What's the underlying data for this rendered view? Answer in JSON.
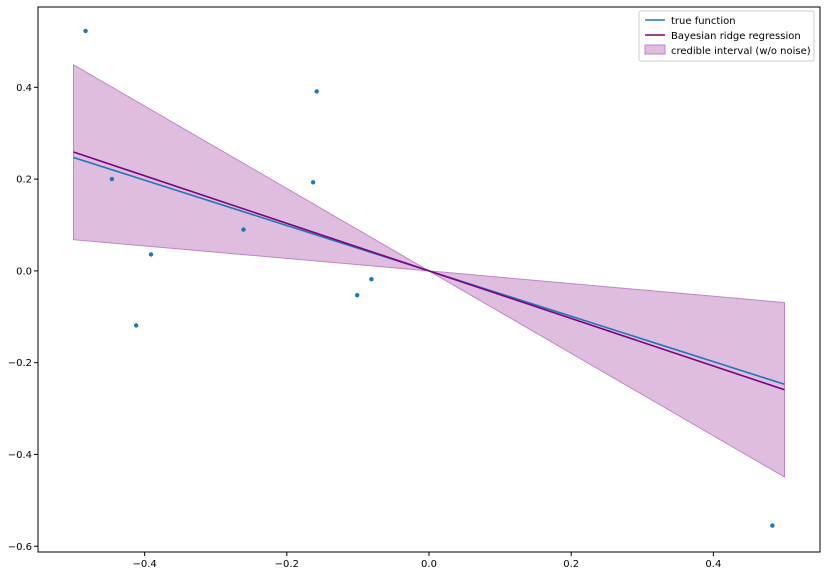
{
  "chart_data": {
    "type": "line",
    "title": "",
    "xlabel": "",
    "ylabel": "",
    "xlim": [
      -0.55,
      0.55
    ],
    "ylim": [
      -0.6125,
      0.575
    ],
    "x_ticks": [
      -0.4,
      -0.2,
      0.0,
      0.2,
      0.4
    ],
    "x_tick_labels": [
      "−0.4",
      "−0.2",
      "0.0",
      "0.2",
      "0.4"
    ],
    "y_ticks": [
      -0.6,
      -0.4,
      -0.2,
      0.0,
      0.2,
      0.4
    ],
    "y_tick_labels": [
      "−0.6",
      "−0.4",
      "−0.2",
      "0.0",
      "0.2",
      "0.4"
    ],
    "grid": false,
    "legend_position": "top-right",
    "colors": {
      "true_function": "#1f77b4",
      "bayesian": "#800080",
      "band_fill": "#dfbddf",
      "band_edge": "#c084c8",
      "points": "#1f77b4"
    },
    "series": [
      {
        "name": "true function",
        "type": "line",
        "x": [
          -0.5,
          0.5
        ],
        "y": [
          0.247,
          -0.247
        ]
      },
      {
        "name": "Bayesian ridge regression",
        "type": "line",
        "x": [
          -0.5,
          0.5
        ],
        "y": [
          0.259,
          -0.259
        ]
      },
      {
        "name": "credible interval (w/o noise)",
        "type": "area",
        "x": [
          -0.5,
          0.0,
          0.5
        ],
        "upper": [
          0.449,
          0.0,
          -0.069
        ],
        "lower": [
          0.068,
          0.0,
          -0.449
        ]
      },
      {
        "name": "",
        "type": "scatter",
        "x": [
          -0.483,
          -0.446,
          -0.412,
          -0.391,
          -0.261,
          -0.163,
          -0.158,
          -0.101,
          -0.081,
          0.483
        ],
        "y": [
          0.523,
          0.2,
          -0.119,
          0.036,
          0.09,
          0.193,
          0.391,
          -0.053,
          -0.018,
          -0.555
        ]
      }
    ],
    "legend": [
      "true function",
      "Bayesian ridge regression",
      "credible interval (w/o noise)"
    ]
  }
}
